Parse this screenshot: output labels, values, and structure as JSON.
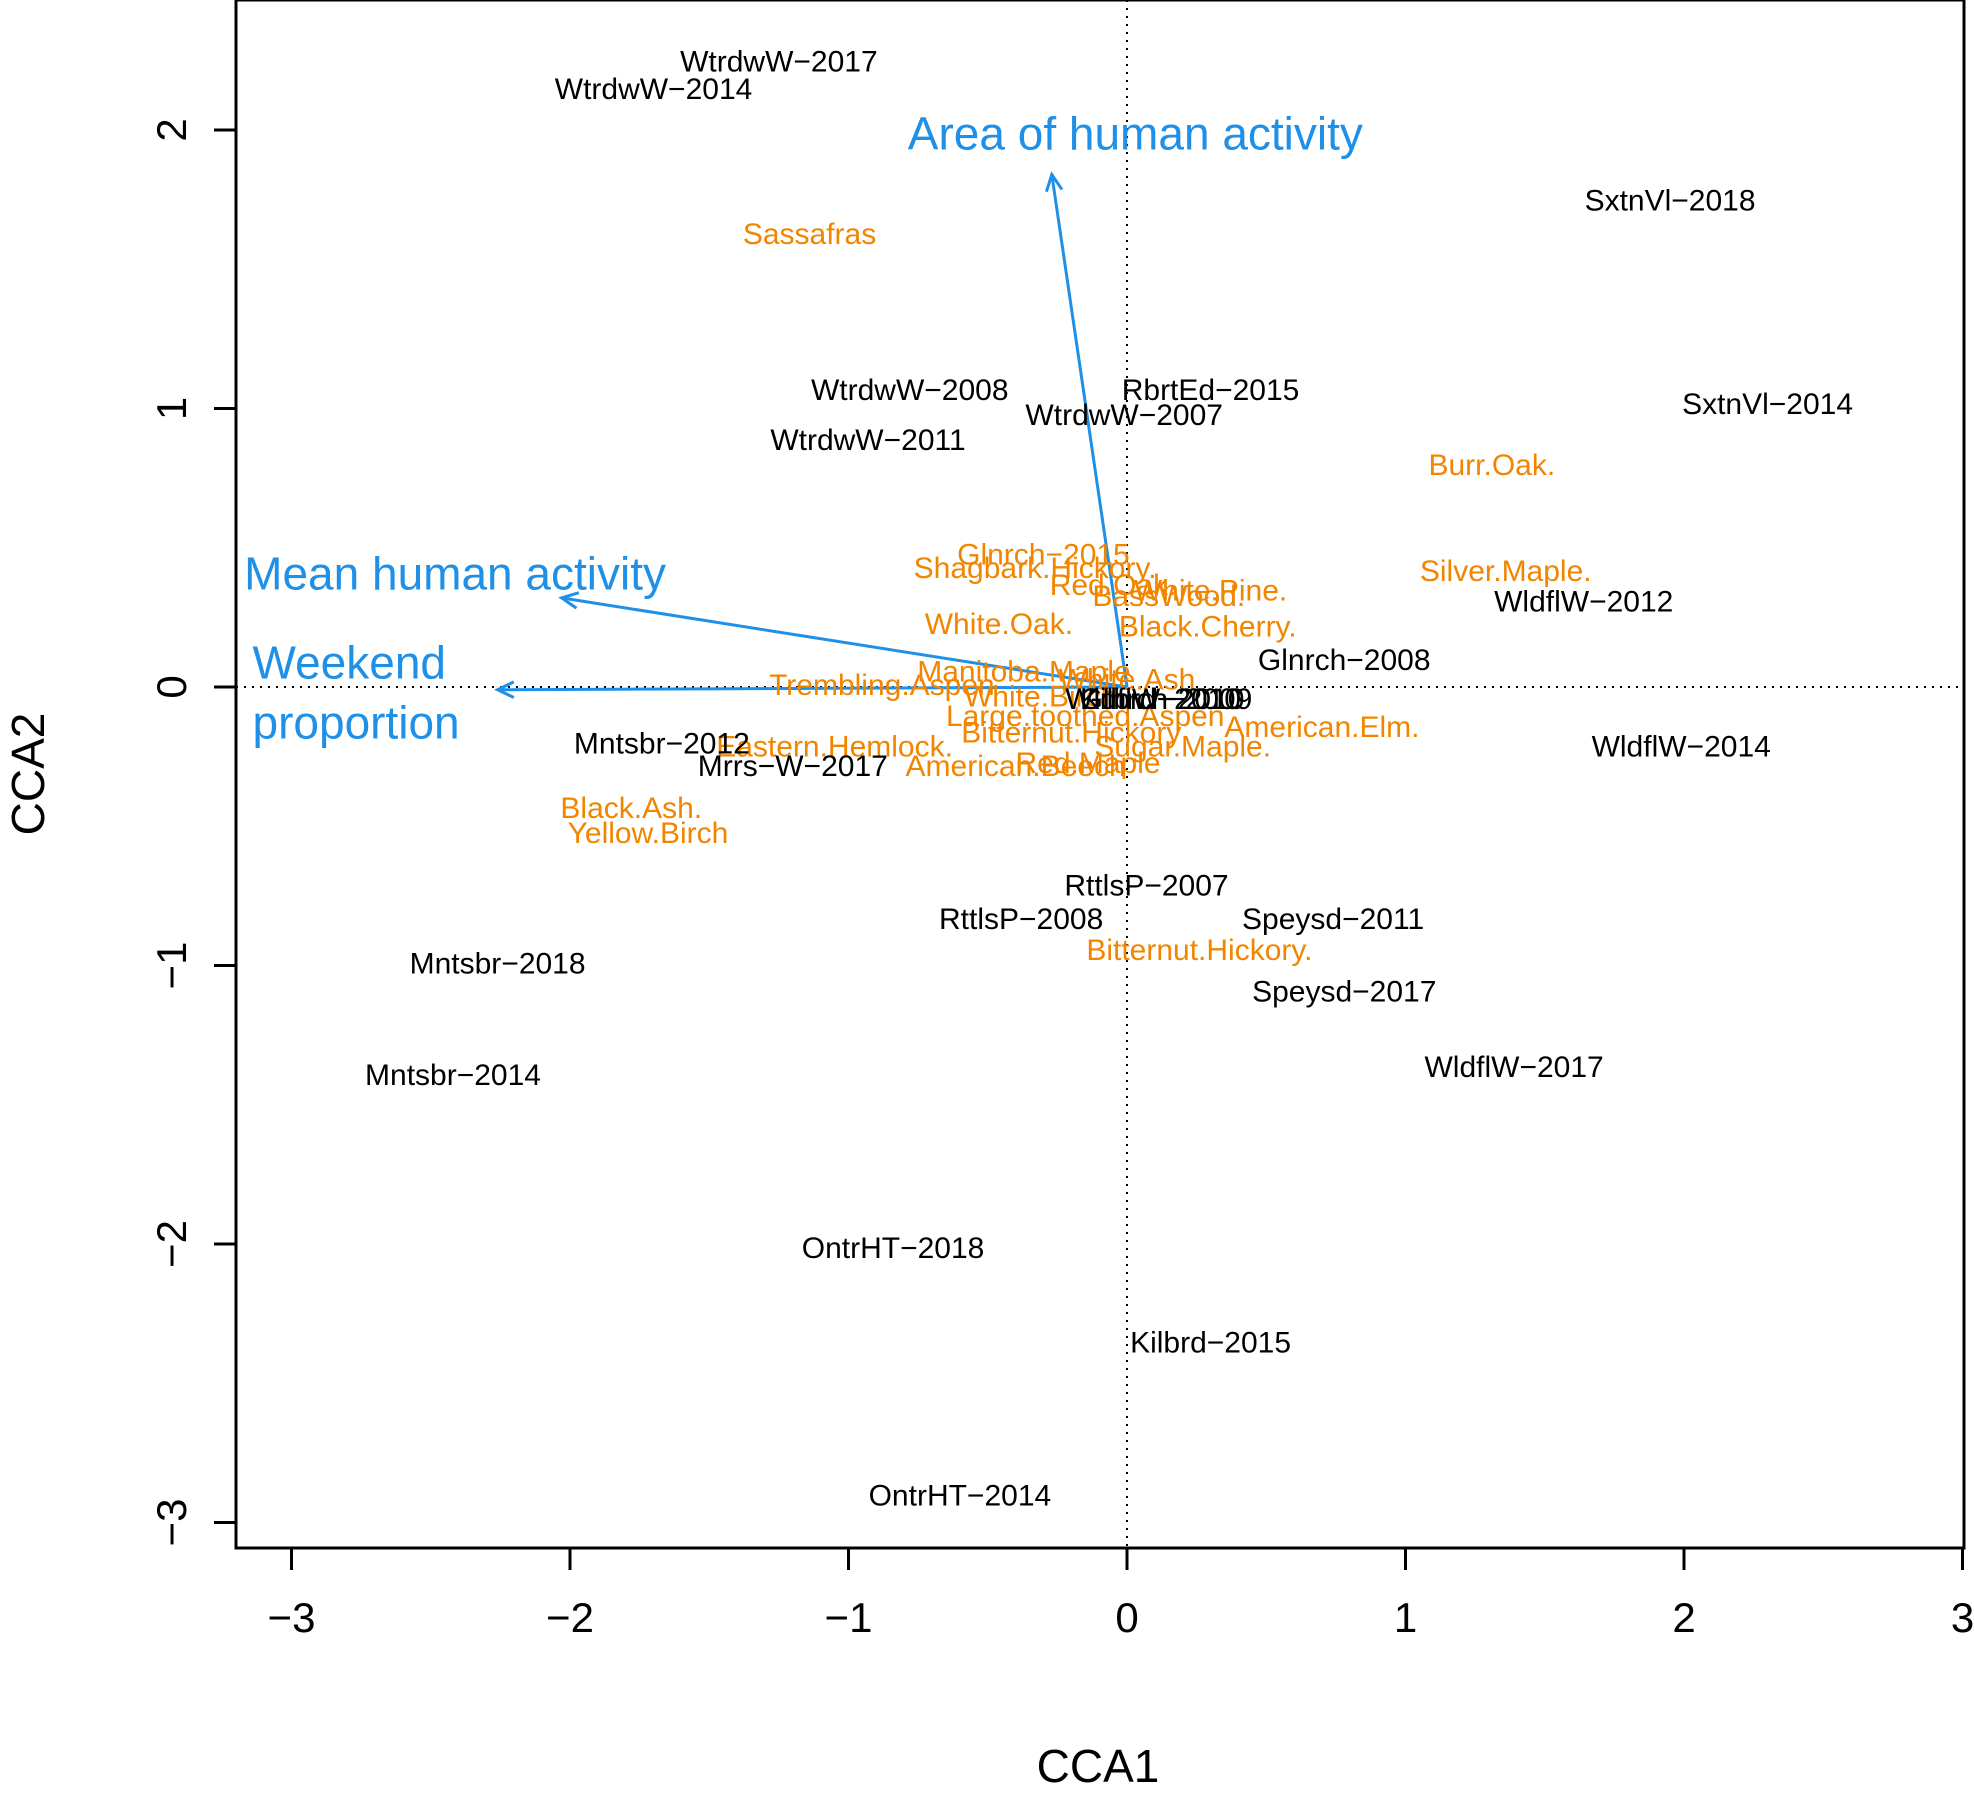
{
  "chart_data": {
    "type": "scatter",
    "xlabel": "CCA1",
    "ylabel": "CCA2",
    "xlim": [
      -3.2,
      3.0
    ],
    "ylim": [
      -3.1,
      2.45
    ],
    "xticks": [
      -3,
      -2,
      -1,
      0,
      1,
      2,
      3
    ],
    "yticks": [
      -3,
      -2,
      -1,
      0,
      1,
      2
    ],
    "reference_lines": {
      "x": 0,
      "y": 0,
      "style": "dotted"
    },
    "colors": {
      "sites": "#000000",
      "species": "#f28500",
      "vectors": "#1e90e8"
    },
    "sites": [
      {
        "label": "WtrdwW−2017",
        "x": -1.25,
        "y": 2.25
      },
      {
        "label": "WtrdwW−2014",
        "x": -1.7,
        "y": 2.15
      },
      {
        "label": "SxtnVl−2018",
        "x": 1.95,
        "y": 1.75
      },
      {
        "label": "WtrdwW−2008",
        "x": -0.78,
        "y": 1.07
      },
      {
        "label": "RbrtEd−2015",
        "x": 0.3,
        "y": 1.07
      },
      {
        "label": "WtrdwW−2007",
        "x": -0.01,
        "y": 0.98
      },
      {
        "label": "SxtnVl−2014",
        "x": 2.3,
        "y": 1.02
      },
      {
        "label": "WtrdwW−2011",
        "x": -0.93,
        "y": 0.89
      },
      {
        "label": "WldflW−2012",
        "x": 1.64,
        "y": 0.31
      },
      {
        "label": "Glnrch−2008",
        "x": 0.78,
        "y": 0.1
      },
      {
        "label": "WldflW−2014",
        "x": 1.99,
        "y": -0.21
      },
      {
        "label": "Mntsbr−2012",
        "x": -1.67,
        "y": -0.2
      },
      {
        "label": "Mrrs−W−2017",
        "x": -1.2,
        "y": -0.28
      },
      {
        "label": "RttlsP−2007",
        "x": 0.07,
        "y": -0.71
      },
      {
        "label": "RttlsP−2008",
        "x": -0.38,
        "y": -0.83
      },
      {
        "label": "Speysd−2011",
        "x": 0.74,
        "y": -0.83
      },
      {
        "label": "Speysd−2017",
        "x": 0.78,
        "y": -1.09
      },
      {
        "label": "Mntsbr−2018",
        "x": -2.26,
        "y": -0.99
      },
      {
        "label": "WldflW−2017",
        "x": 1.39,
        "y": -1.36
      },
      {
        "label": "Mntsbr−2014",
        "x": -2.42,
        "y": -1.39
      },
      {
        "label": "OntrHT−2018",
        "x": -0.84,
        "y": -2.01
      },
      {
        "label": "Kilbrd−2015",
        "x": 0.3,
        "y": -2.35
      },
      {
        "label": "OntrHT−2014",
        "x": -0.6,
        "y": -2.9
      },
      {
        "label": "WldflW−2010",
        "x": 0.1,
        "y": -0.04
      },
      {
        "label": "Kilbrd−2010",
        "x": 0.12,
        "y": -0.04
      },
      {
        "label": "Glnrch−2009",
        "x": 0.14,
        "y": -0.04
      }
    ],
    "species": [
      {
        "label": "Sassafras",
        "x": -1.14,
        "y": 1.63
      },
      {
        "label": "Burr.Oak.",
        "x": 1.31,
        "y": 0.8
      },
      {
        "label": "Glnrch−2015",
        "x": -0.3,
        "y": 0.48
      },
      {
        "label": "Shagbark.Hickory.",
        "x": -0.33,
        "y": 0.43
      },
      {
        "label": "Red.Oak.",
        "x": -0.05,
        "y": 0.37
      },
      {
        "label": "White.Pine.",
        "x": 0.3,
        "y": 0.35
      },
      {
        "label": "BassWood.",
        "x": 0.15,
        "y": 0.33
      },
      {
        "label": "Silver.Maple.",
        "x": 1.36,
        "y": 0.42
      },
      {
        "label": "White.Oak.",
        "x": -0.46,
        "y": 0.23
      },
      {
        "label": "Black.Cherry.",
        "x": 0.29,
        "y": 0.22
      },
      {
        "label": "Manitoba.Maple",
        "x": -0.37,
        "y": 0.06
      },
      {
        "label": "White.Ash",
        "x": 0.0,
        "y": 0.03
      },
      {
        "label": "Trembling.Aspen",
        "x": -0.88,
        "y": 0.01
      },
      {
        "label": "White.Birch",
        "x": -0.31,
        "y": -0.03
      },
      {
        "label": "Large.toothed.Aspen",
        "x": -0.15,
        "y": -0.1
      },
      {
        "label": "Bitternut.Hickory",
        "x": -0.2,
        "y": -0.16
      },
      {
        "label": "Sugar.Maple.",
        "x": 0.2,
        "y": -0.21
      },
      {
        "label": "American.Elm.",
        "x": 0.7,
        "y": -0.14
      },
      {
        "label": "Eastern.Hemlock.",
        "x": -1.05,
        "y": -0.21
      },
      {
        "label": "American.Beech",
        "x": -0.4,
        "y": -0.28
      },
      {
        "label": "Red.Maple",
        "x": -0.14,
        "y": -0.27
      },
      {
        "label": "Black.Ash.",
        "x": -1.78,
        "y": -0.43
      },
      {
        "label": "Yellow.Birch",
        "x": -1.72,
        "y": -0.52
      },
      {
        "label": "Bitternut.Hickory.",
        "x": 0.26,
        "y": -0.94
      }
    ],
    "vectors": [
      {
        "label": "Area of human activity",
        "x": -0.27,
        "y": 1.84
      },
      {
        "label": "Mean human activity",
        "x": -2.03,
        "y": 0.32
      },
      {
        "label": "Weekend proportion",
        "x": -2.26,
        "y": -0.01
      }
    ]
  },
  "vector_label_lines": {
    "area": [
      "Area of human activity"
    ],
    "mean": [
      "Mean human activity"
    ],
    "weekend": [
      "Weekend",
      "proportion"
    ]
  }
}
